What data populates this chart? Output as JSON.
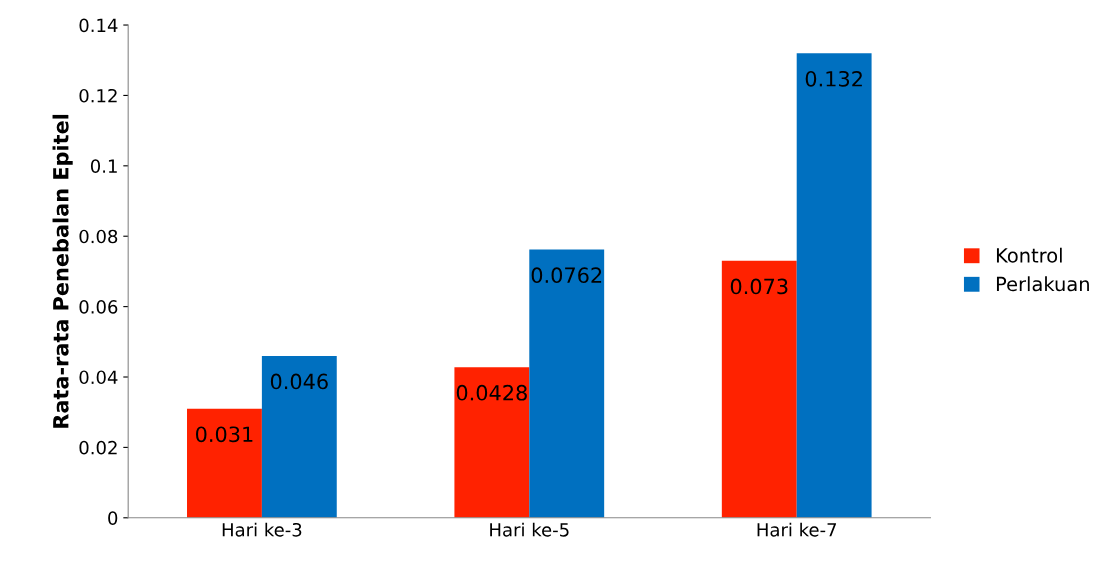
{
  "chart_data": {
    "type": "bar",
    "ylabel": "Rata-rata Penebalan Epitel",
    "categories": [
      "Hari ke-3",
      "Hari ke-5",
      "Hari ke-7"
    ],
    "series": [
      {
        "name": "Kontrol",
        "color": "#ff2200",
        "values": [
          0.031,
          0.0428,
          0.073
        ]
      },
      {
        "name": "Perlakuan",
        "color": "#0070c0",
        "values": [
          0.046,
          0.0762,
          0.132
        ]
      }
    ],
    "ylim": [
      0,
      0.14
    ],
    "yticks": [
      0,
      0.02,
      0.04,
      0.06,
      0.08,
      0.1,
      0.12,
      0.14
    ],
    "grid": false,
    "legend": "right",
    "data_labels": true
  }
}
